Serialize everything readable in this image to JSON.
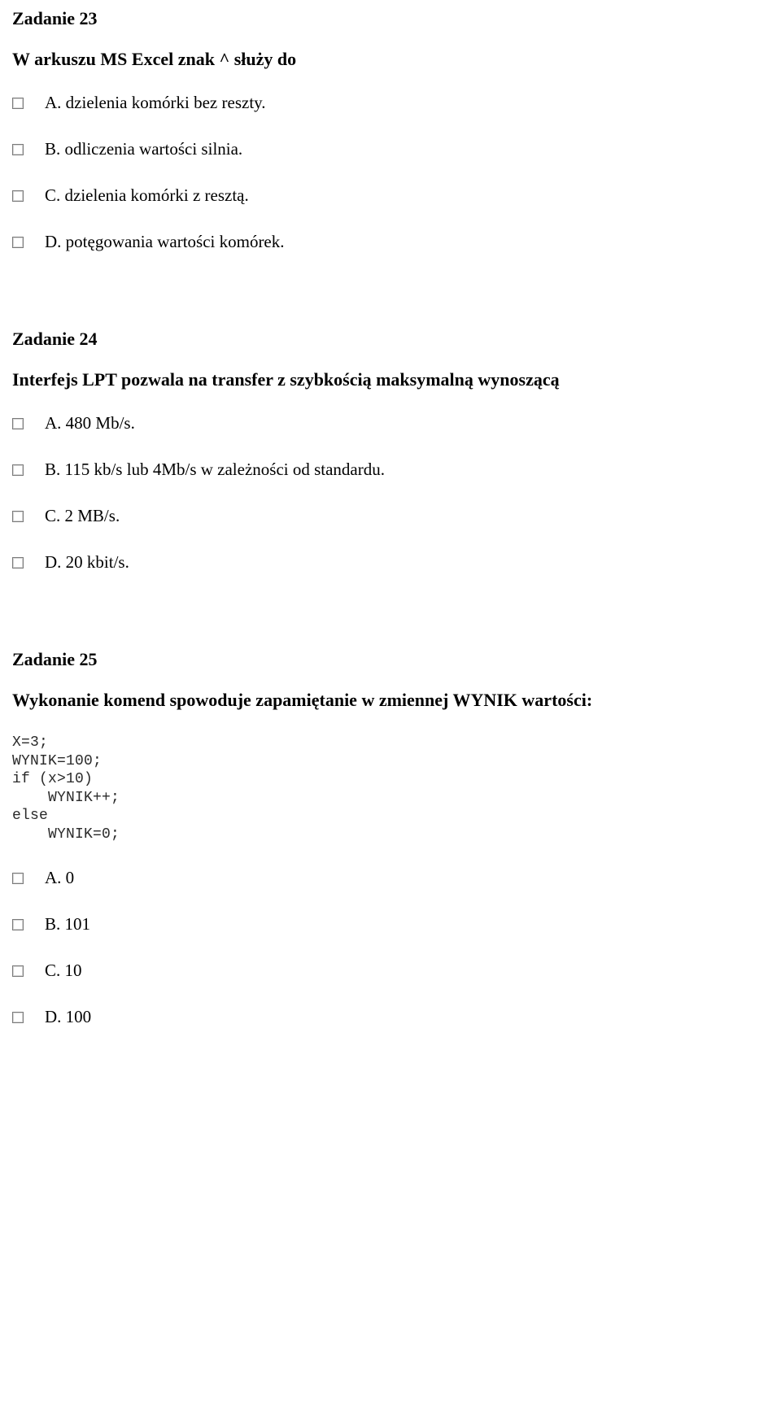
{
  "task23": {
    "title": "Zadanie 23",
    "question": "W arkuszu MS Excel znak ^ służy do",
    "options": {
      "a": "A. dzielenia komórki bez reszty.",
      "b": "B. odliczenia wartości silnia.",
      "c": "C. dzielenia komórki z resztą.",
      "d": "D. potęgowania wartości komórek."
    }
  },
  "task24": {
    "title": "Zadanie 24",
    "question": "Interfejs LPT pozwala na transfer z szybkością maksymalną wynoszącą",
    "options": {
      "a": "A. 480 Mb/s.",
      "b": "B. 115 kb/s lub 4Mb/s w zależności od standardu.",
      "c": "C. 2 MB/s.",
      "d": "D. 20 kbit/s."
    }
  },
  "task25": {
    "title": "Zadanie 25",
    "question": "Wykonanie komend spowoduje zapamiętanie w zmiennej WYNIK wartości:",
    "code": "X=3;\nWYNIK=100;\nif (x>10)\n    WYNIK++;\nelse\n    WYNIK=0;",
    "options": {
      "a": "A. 0",
      "b": "B. 101",
      "c": "C. 10",
      "d": "D. 100"
    }
  }
}
